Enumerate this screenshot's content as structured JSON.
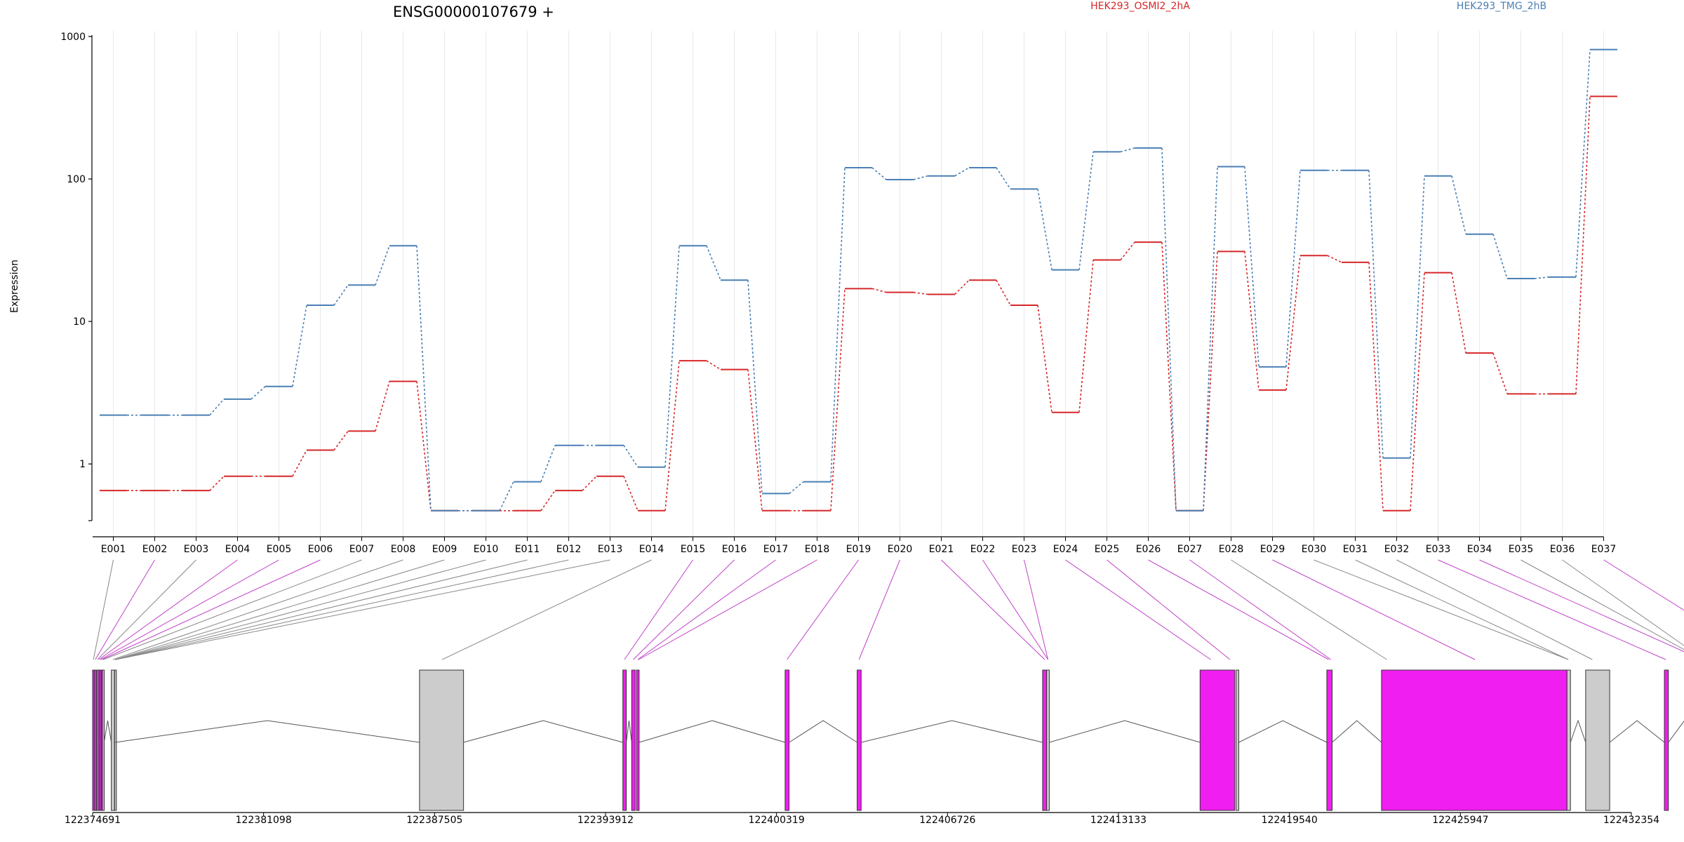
{
  "chart_data": {
    "type": "line",
    "title": "ENSG00000107679 +",
    "xlabel": "",
    "ylabel": "Expression",
    "y_scale": "log",
    "ylim": [
      0.5,
      1000
    ],
    "y_ticks": [
      "1",
      "10",
      "100",
      "1000"
    ],
    "legend_position": "top-right",
    "categories": [
      "E001",
      "E002",
      "E003",
      "E004",
      "E005",
      "E006",
      "E007",
      "E008",
      "E009",
      "E010",
      "E011",
      "E012",
      "E013",
      "E014",
      "E015",
      "E016",
      "E017",
      "E018",
      "E019",
      "E020",
      "E021",
      "E022",
      "E023",
      "E024",
      "E025",
      "E026",
      "E027",
      "E028",
      "E029",
      "E030",
      "E031",
      "E032",
      "E033",
      "E034",
      "E035",
      "E036",
      "E037"
    ],
    "series": [
      {
        "name": "HEK293_OSMI2_2hA",
        "color": "#d62728",
        "values": [
          0.65,
          0.65,
          0.65,
          0.82,
          0.82,
          1.25,
          1.7,
          3.8,
          0.47,
          0.47,
          0.47,
          0.65,
          0.82,
          0.47,
          5.3,
          4.6,
          0.47,
          0.47,
          17.0,
          16.0,
          15.5,
          19.5,
          13.0,
          2.3,
          27.0,
          36.0,
          0.47,
          31.0,
          3.3,
          29.0,
          26.0,
          0.47,
          22.0,
          6.0,
          3.1,
          3.1,
          380.0
        ]
      },
      {
        "name": "HEK293_TMG_2hB",
        "color": "#4a7fb5",
        "values": [
          2.2,
          2.2,
          2.2,
          2.85,
          3.5,
          13.0,
          18.0,
          34.0,
          0.47,
          0.47,
          0.75,
          1.35,
          1.35,
          0.95,
          34.0,
          19.5,
          0.62,
          0.75,
          120.0,
          99.0,
          105.0,
          120.0,
          85.0,
          23.0,
          155.0,
          165.0,
          0.47,
          122.0,
          4.8,
          115.0,
          115.0,
          1.1,
          105.0,
          41.0,
          20.0,
          20.5,
          810.0
        ]
      }
    ],
    "genomic_axis": {
      "tick_labels": [
        "122374691",
        "122381098",
        "122387505",
        "122393912",
        "122400319",
        "122406726",
        "122413133",
        "122419540",
        "122425947",
        "122432354"
      ]
    }
  }
}
